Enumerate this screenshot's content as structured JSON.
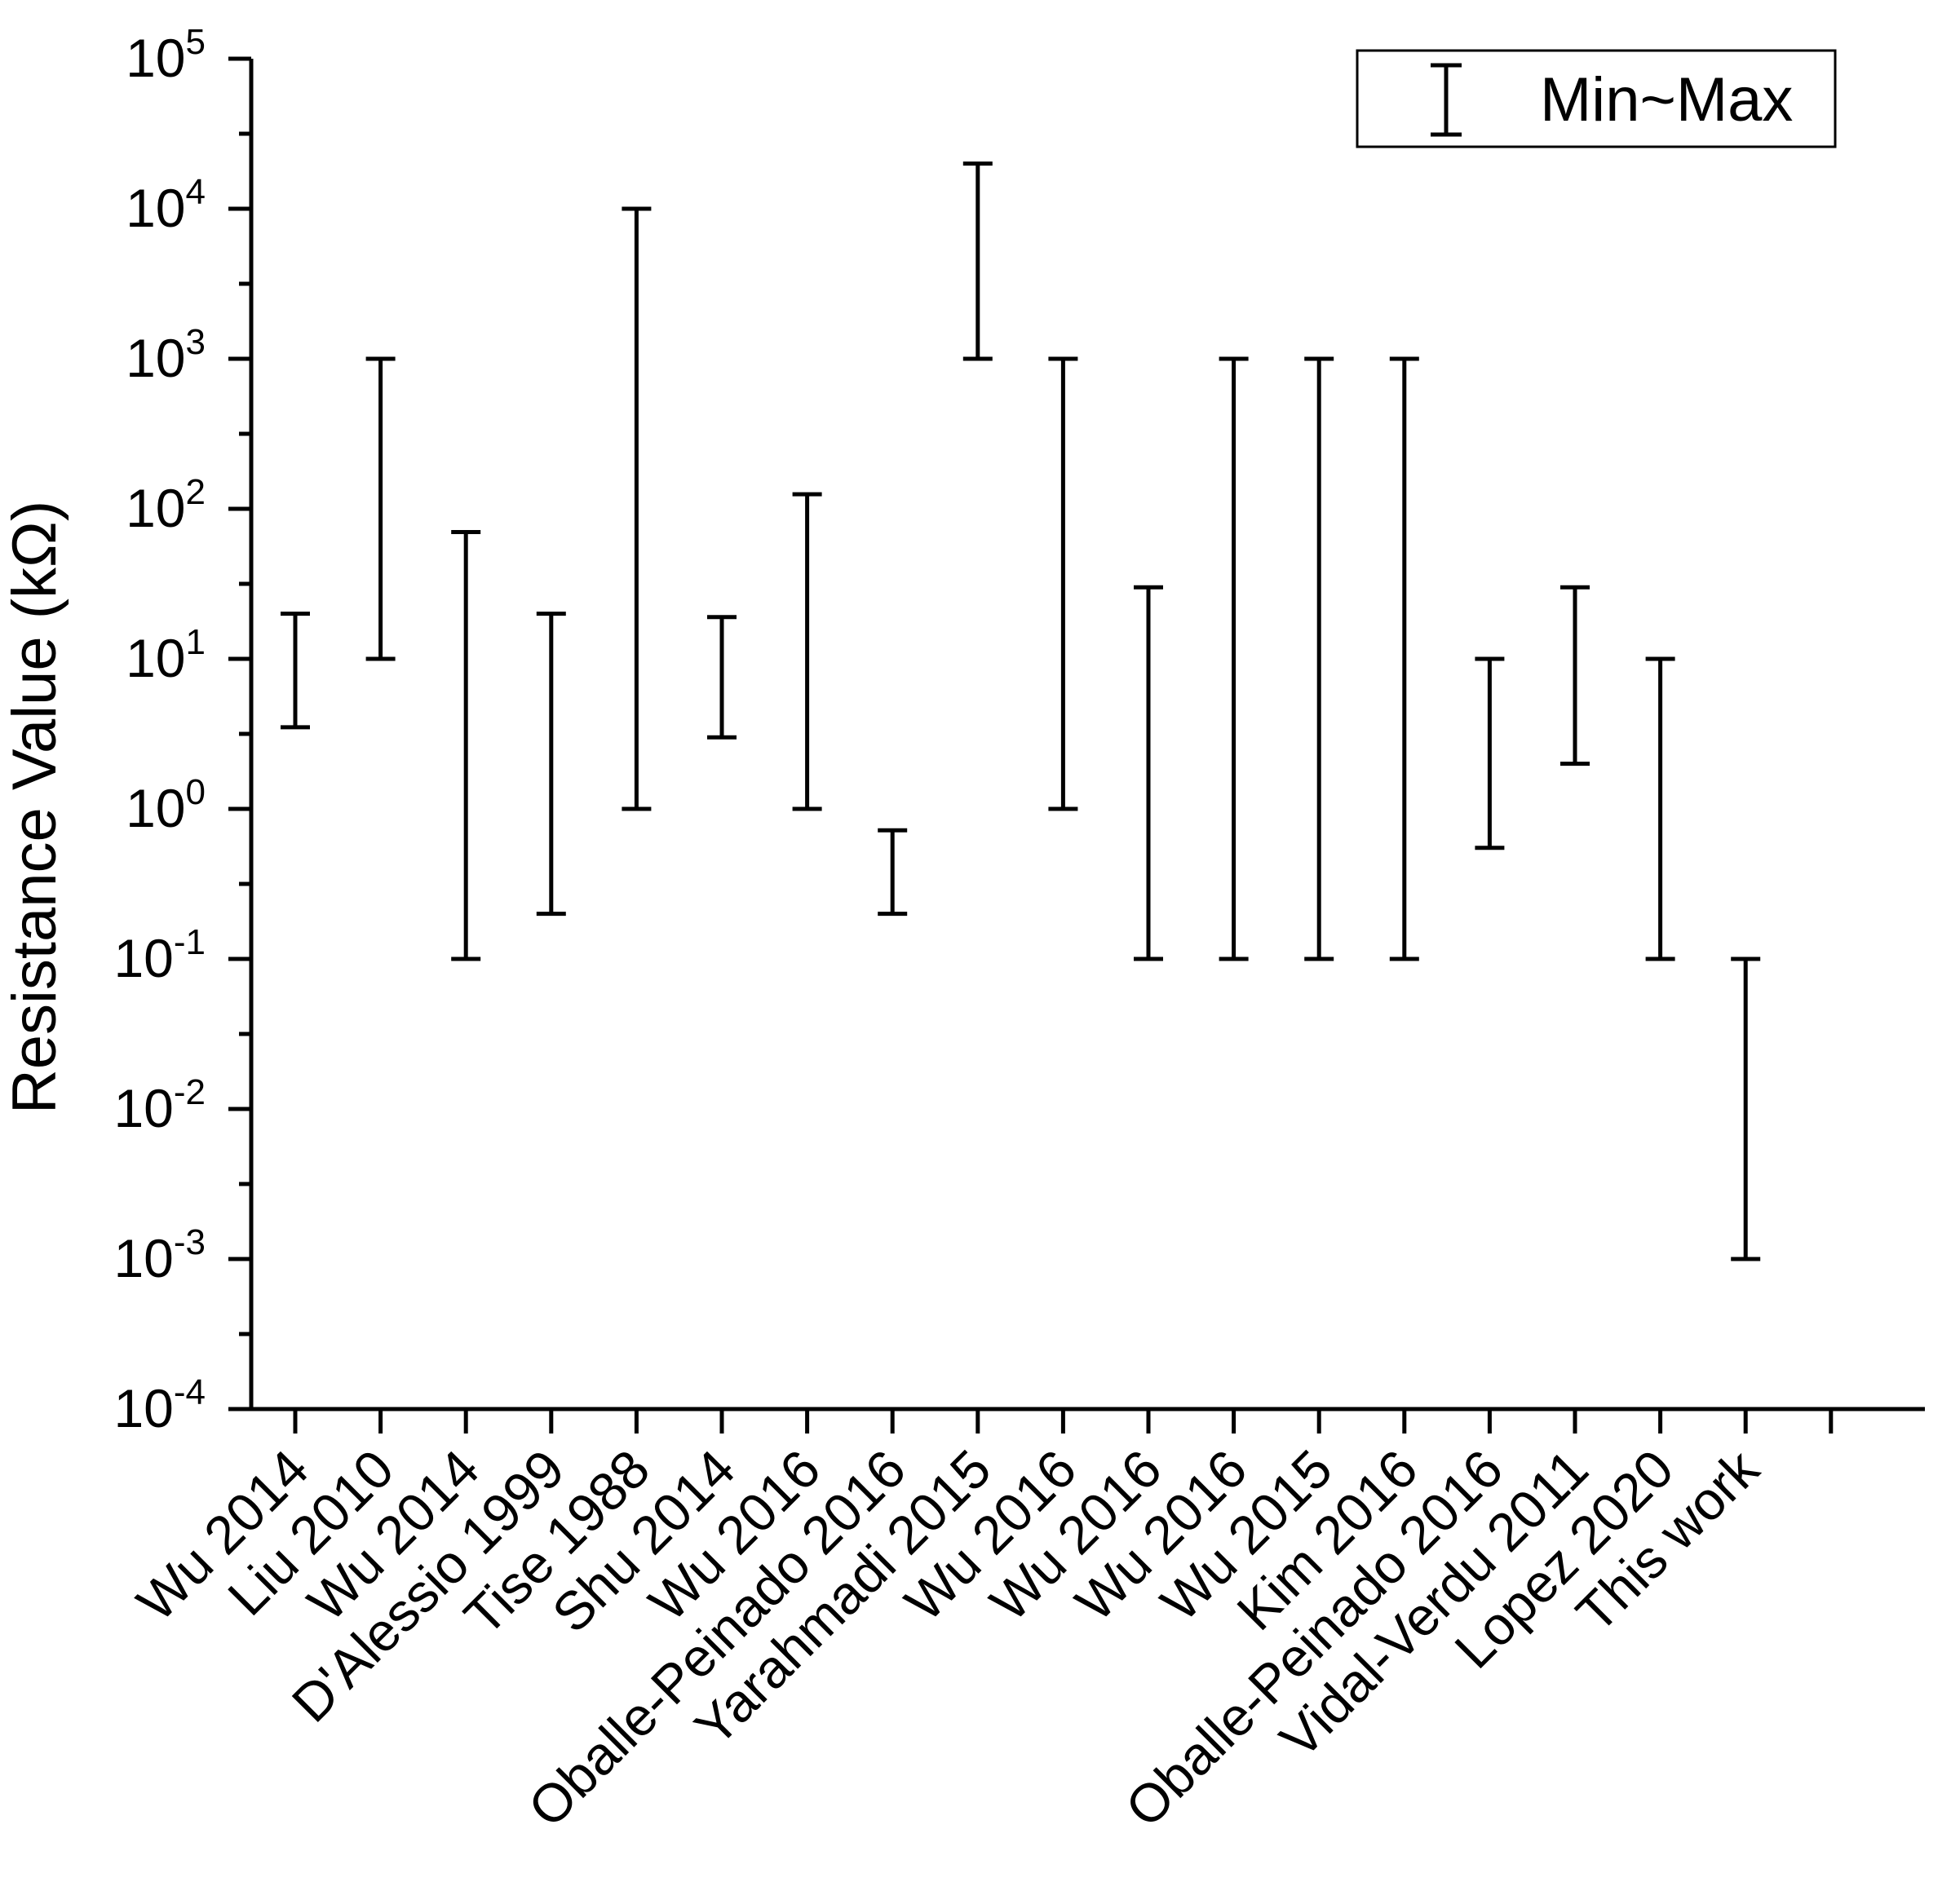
{
  "chart_data": {
    "type": "range",
    "title": "",
    "xlabel": "",
    "ylabel": "Resistance Value (kΩ)",
    "yscale": "log",
    "ylim": [
      0.0001,
      100000
    ],
    "y_ticks": [
      {
        "base": "10",
        "exp": "-4"
      },
      {
        "base": "10",
        "exp": "-3"
      },
      {
        "base": "10",
        "exp": "-2"
      },
      {
        "base": "10",
        "exp": "-1"
      },
      {
        "base": "10",
        "exp": "0"
      },
      {
        "base": "10",
        "exp": "1"
      },
      {
        "base": "10",
        "exp": "2"
      },
      {
        "base": "10",
        "exp": "3"
      },
      {
        "base": "10",
        "exp": "4"
      },
      {
        "base": "10",
        "exp": "5"
      }
    ],
    "categories": [
      "Wu 2014",
      "Liu 2010",
      "Wu 2014",
      "D'Alessio 1999",
      "Tise 1988",
      "Shu 2014",
      "Wu 2016",
      "Oballe-Peinado 2016",
      "Yarahmadi 2015",
      "Wu 2016",
      "Wu 2016",
      "Wu 2016",
      "Wu 2015",
      "Kim 2016",
      "Oballe-Peinado 2016",
      "Vidal-Verdu 2011",
      "Lopez 2020",
      "This work"
    ],
    "series": [
      {
        "name": "Min~Max",
        "min": [
          3.5,
          10,
          0.1,
          0.2,
          1,
          3,
          1,
          0.2,
          1000,
          1,
          0.1,
          0.1,
          0.1,
          0.1,
          0.55,
          2,
          0.1,
          0.001
        ],
        "max": [
          20,
          1000,
          70,
          20,
          10000,
          19,
          125,
          0.72,
          20000,
          1000,
          30,
          1000,
          1000,
          1000,
          10,
          30,
          10,
          0.1
        ]
      }
    ],
    "legend": {
      "label": "Min~Max",
      "position": "top-right"
    }
  }
}
